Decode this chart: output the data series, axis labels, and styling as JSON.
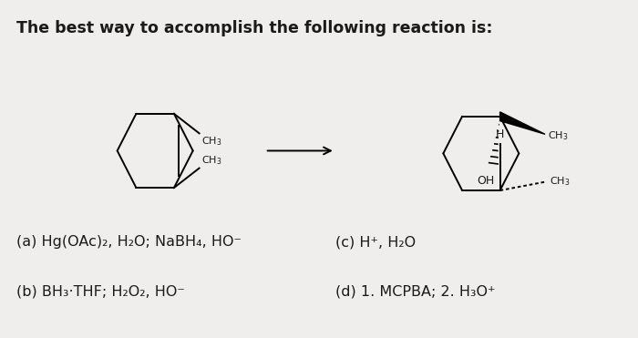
{
  "title": "The best way to accomplish the following reaction is:",
  "title_fontsize": 12.5,
  "bg_color": "#f0eeec",
  "text_color": "#1a1a1a",
  "answer_a": "(a) Hg(OAc)₂, H₂O; NaBH₄, HO⁻",
  "answer_b": "(b) BH₃·THF; H₂O₂, HO⁻",
  "answer_c": "(c) H⁺, H₂O",
  "answer_d": "(d) 1. MCPBA; 2. H₃O⁺",
  "answer_fontsize": 11.5
}
